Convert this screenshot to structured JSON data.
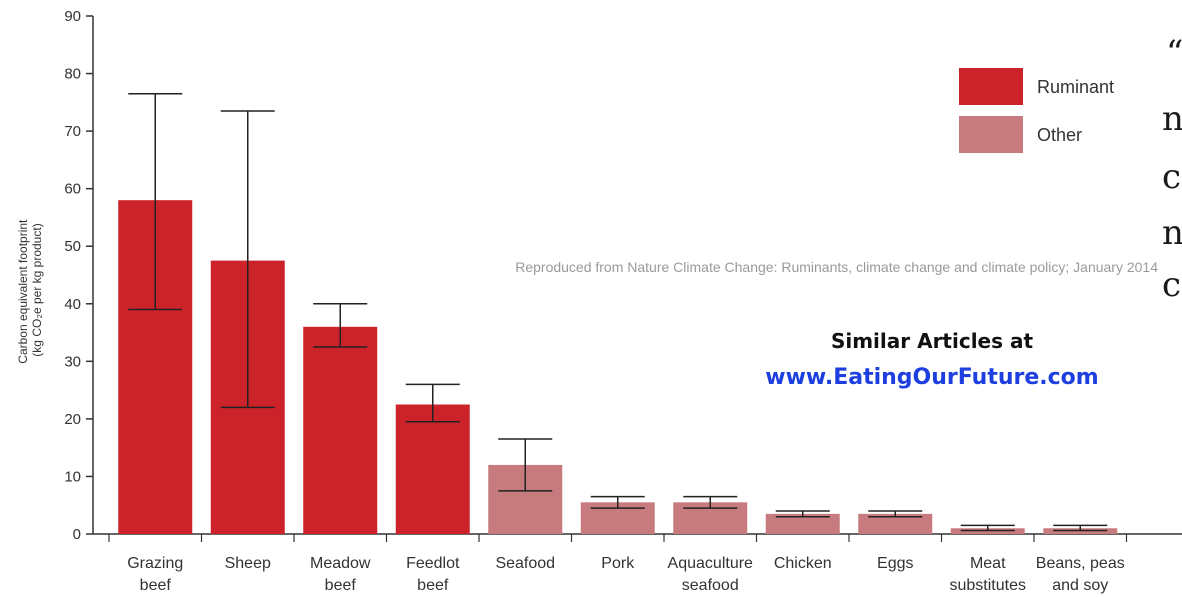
{
  "chart_data": {
    "type": "bar",
    "ylabel_lines": [
      "Carbon equivalent footprint",
      "(kg CO₂e per kg product)"
    ],
    "ylim": [
      0,
      90
    ],
    "yticks": [
      0,
      10,
      20,
      30,
      40,
      50,
      60,
      70,
      80,
      90
    ],
    "grid": false,
    "legend_position": "top-right",
    "legend": [
      {
        "label": "Ruminant",
        "color": "#cc2229"
      },
      {
        "label": "Other",
        "color": "#c87b7e"
      }
    ],
    "bars": [
      {
        "label_lines": [
          "Grazing",
          "beef"
        ],
        "value": 58,
        "err_low": 39,
        "err_high": 76.5,
        "group": "Ruminant"
      },
      {
        "label_lines": [
          "Sheep"
        ],
        "value": 47.5,
        "err_low": 22,
        "err_high": 73.5,
        "group": "Ruminant"
      },
      {
        "label_lines": [
          "Meadow",
          "beef"
        ],
        "value": 36,
        "err_low": 32.5,
        "err_high": 40,
        "group": "Ruminant"
      },
      {
        "label_lines": [
          "Feedlot",
          "beef"
        ],
        "value": 22.5,
        "err_low": 19.5,
        "err_high": 26,
        "group": "Ruminant"
      },
      {
        "label_lines": [
          "Seafood"
        ],
        "value": 12,
        "err_low": 7.5,
        "err_high": 16.5,
        "group": "Other"
      },
      {
        "label_lines": [
          "Pork"
        ],
        "value": 5.5,
        "err_low": 4.5,
        "err_high": 6.5,
        "group": "Other"
      },
      {
        "label_lines": [
          "Aquaculture",
          "seafood"
        ],
        "value": 5.5,
        "err_low": 4.5,
        "err_high": 6.5,
        "group": "Other"
      },
      {
        "label_lines": [
          "Chicken"
        ],
        "value": 3.5,
        "err_low": 3,
        "err_high": 4,
        "group": "Other"
      },
      {
        "label_lines": [
          "Eggs"
        ],
        "value": 3.5,
        "err_low": 3,
        "err_high": 4,
        "group": "Other"
      },
      {
        "label_lines": [
          "Meat",
          "substitutes"
        ],
        "value": 1,
        "err_low": 0.6,
        "err_high": 1.5,
        "group": "Other"
      },
      {
        "label_lines": [
          "Beans, peas",
          "and soy"
        ],
        "value": 1,
        "err_low": 0.6,
        "err_high": 1.5,
        "group": "Other"
      }
    ]
  },
  "annotations": {
    "source_note": "Reproduced from Nature Climate Change: Ruminants, climate change and climate policy; January 2014",
    "promo_line1": "Similar Articles at",
    "promo_line2": "www.EatingOurFuture.com"
  },
  "side_text": [
    "“",
    "n",
    "c",
    "n",
    "c"
  ]
}
